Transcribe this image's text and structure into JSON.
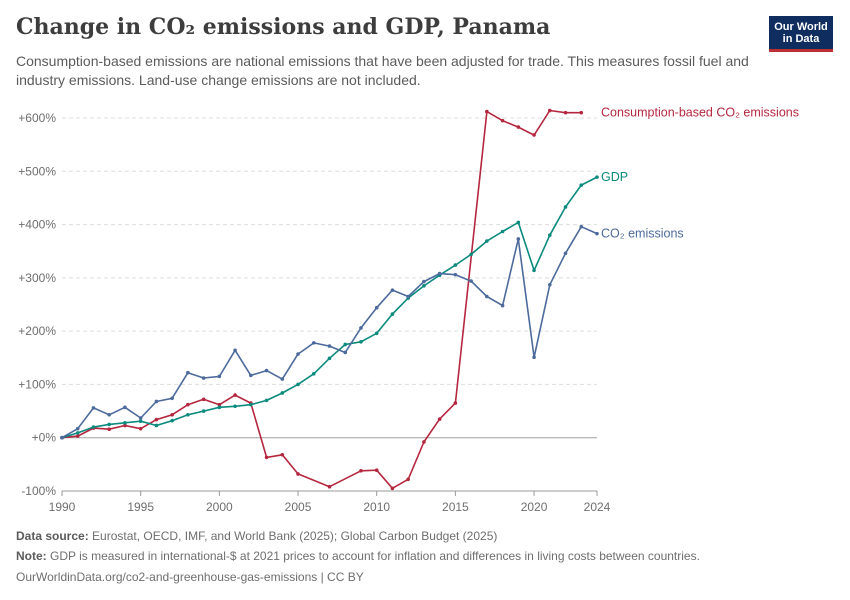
{
  "header": {
    "title": "Change in CO₂ emissions and GDP, Panama",
    "subtitle": "Consumption-based emissions are national emissions that have been adjusted for trade. This measures fossil fuel and industry emissions. Land-use change emissions are not included.",
    "logo_line1": "Our World",
    "logo_line2": "in Data"
  },
  "footer": {
    "source_label": "Data source:",
    "source_text": "Eurostat, OECD, IMF, and World Bank (2025); Global Carbon Budget (2025)",
    "note_label": "Note:",
    "note_text": "GDP is measured in international-$ at 2021 prices to account for inflation and differences in living costs between countries.",
    "url": "OurWorldinData.org/co2-and-greenhouse-gas-emissions | CC BY"
  },
  "colors": {
    "consumption": "#b5273f",
    "gdp": "#0b8a7e",
    "co2": "#4c6a9c",
    "grid": "#dddddd",
    "zero_line": "#a0a0a0",
    "axis_text": "#6e6e6e"
  },
  "chart_data": {
    "type": "line",
    "title": "Change in CO₂ emissions and GDP, Panama",
    "xlim": [
      1990,
      2024
    ],
    "ylim": [
      -100,
      600
    ],
    "x_ticks": [
      1990,
      1995,
      2000,
      2005,
      2010,
      2015,
      2020,
      2024
    ],
    "y_ticks": [
      -100,
      0,
      100,
      200,
      300,
      400,
      500,
      600
    ],
    "y_tick_labels": [
      "-100%",
      "+0%",
      "+100%",
      "+200%",
      "+300%",
      "+400%",
      "+500%",
      "+600%"
    ],
    "grid": true,
    "legend": "inline-right",
    "series": [
      {
        "name": "Consumption-based CO₂ emissions",
        "color_key": "consumption",
        "x": [
          1990,
          1991,
          1992,
          1993,
          1994,
          1995,
          1996,
          1997,
          1998,
          1999,
          2000,
          2001,
          2002,
          2003,
          2004,
          2005,
          2006,
          2007,
          2008,
          2009,
          2010,
          2011,
          2012,
          2013,
          2014,
          2015,
          2016,
          2017,
          2018,
          2019,
          2020,
          2021,
          2022,
          2023,
          2024
        ],
        "y": [
          0,
          3,
          18,
          16,
          23,
          17,
          34,
          43,
          62,
          72,
          62,
          80,
          65,
          -37,
          -32,
          -68,
          null,
          -92,
          null,
          -62,
          -61,
          -95,
          -78,
          -8,
          35,
          65,
          null,
          612,
          595,
          583,
          568,
          614,
          610,
          610,
          null
        ]
      },
      {
        "name": "GDP",
        "color_key": "gdp",
        "x": [
          1990,
          1991,
          1992,
          1993,
          1994,
          1995,
          1996,
          1997,
          1998,
          1999,
          2000,
          2001,
          2002,
          2003,
          2004,
          2005,
          2006,
          2007,
          2008,
          2009,
          2010,
          2011,
          2012,
          2013,
          2014,
          2015,
          2016,
          2017,
          2018,
          2019,
          2020,
          2021,
          2022,
          2023,
          2024
        ],
        "y": [
          0,
          9,
          20,
          25,
          28,
          31,
          23,
          32,
          43,
          50,
          57,
          59,
          62,
          70,
          84,
          100,
          120,
          149,
          175,
          180,
          196,
          232,
          262,
          285,
          305,
          324,
          344,
          369,
          387,
          404,
          314,
          380,
          433,
          474,
          489
        ]
      },
      {
        "name": "CO₂ emissions",
        "color_key": "co2",
        "x": [
          1990,
          1991,
          1992,
          1993,
          1994,
          1995,
          1996,
          1997,
          1998,
          1999,
          2000,
          2001,
          2002,
          2003,
          2004,
          2005,
          2006,
          2007,
          2008,
          2009,
          2010,
          2011,
          2012,
          2013,
          2014,
          2015,
          2016,
          2017,
          2018,
          2019,
          2020,
          2021,
          2022,
          2023,
          2024
        ],
        "y": [
          0,
          17,
          56,
          43,
          57,
          37,
          68,
          74,
          122,
          112,
          115,
          164,
          117,
          126,
          110,
          157,
          178,
          172,
          160,
          206,
          244,
          277,
          265,
          293,
          308,
          306,
          294,
          265,
          248,
          373,
          151,
          287,
          346,
          396,
          383
        ]
      }
    ]
  }
}
